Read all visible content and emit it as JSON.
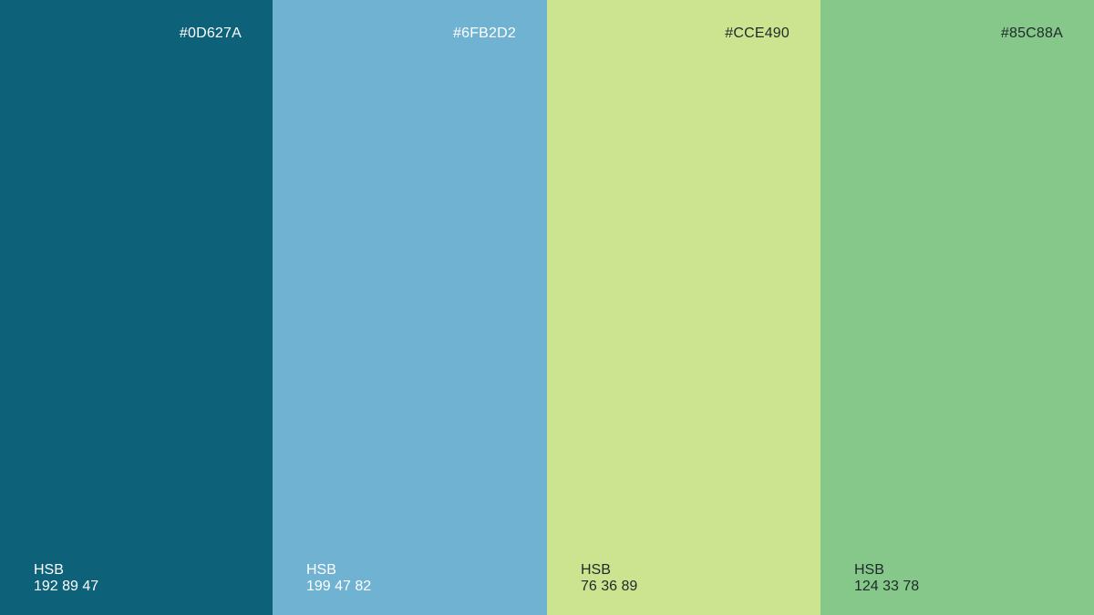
{
  "swatches": [
    {
      "hex_label": "#0D627A",
      "color": "#0D627A",
      "hsb_label": "HSB",
      "hsb_values": "192 89 47",
      "text_tone": "light"
    },
    {
      "hex_label": "#6FB2D2",
      "color": "#6FB2D2",
      "hsb_label": "HSB",
      "hsb_values": "199 47 82",
      "text_tone": "light"
    },
    {
      "hex_label": "#CCE490",
      "color": "#CCE490",
      "hsb_label": "HSB",
      "hsb_values": "76 36 89",
      "text_tone": "dark"
    },
    {
      "hex_label": "#85C88A",
      "color": "#85C88A",
      "hsb_label": "HSB",
      "hsb_values": "124 33 78",
      "text_tone": "dark"
    }
  ]
}
